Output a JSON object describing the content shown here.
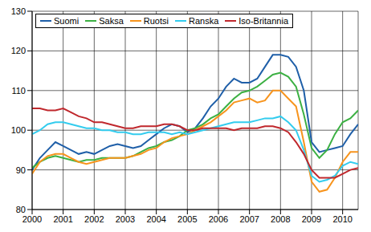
{
  "chart_data": {
    "type": "line",
    "legend": "upper left",
    "grid": true,
    "x": [
      2000,
      2000.25,
      2000.5,
      2000.75,
      2001,
      2001.25,
      2001.5,
      2001.75,
      2002,
      2002.25,
      2002.5,
      2002.75,
      2003,
      2003.25,
      2003.5,
      2003.75,
      2004,
      2004.25,
      2004.5,
      2004.75,
      2005,
      2005.25,
      2005.5,
      2005.75,
      2006,
      2006.25,
      2006.5,
      2006.75,
      2007,
      2007.25,
      2007.5,
      2007.75,
      2008,
      2008.25,
      2008.5,
      2008.75,
      2009,
      2009.25,
      2009.5,
      2009.75,
      2010,
      2010.25,
      2010.5
    ],
    "xlim": [
      2000,
      2010.5
    ],
    "xticks": [
      2000,
      2001,
      2002,
      2003,
      2004,
      2005,
      2006,
      2007,
      2008,
      2009,
      2010
    ],
    "ylim": [
      80,
      130
    ],
    "yticks": [
      80,
      90,
      100,
      110,
      120,
      130
    ],
    "series": [
      {
        "name": "Suomi",
        "color": "#1f5fa8",
        "values": [
          90,
          93,
          95,
          97,
          96,
          95,
          94,
          94.5,
          94,
          95,
          96,
          96.5,
          96,
          95.5,
          96,
          97.5,
          99,
          100.5,
          101.5,
          101,
          99.5,
          100.5,
          103,
          106,
          108,
          111,
          113,
          112,
          112,
          113,
          116,
          119,
          119,
          118.5,
          116,
          110,
          97,
          94.5,
          95,
          95.5,
          96,
          99,
          101.5
        ]
      },
      {
        "name": "Saksa",
        "color": "#3cb043",
        "values": [
          90.5,
          92,
          93,
          93.5,
          93,
          92.5,
          92,
          92.5,
          92.5,
          93,
          93,
          93,
          93,
          93.5,
          94.5,
          95.5,
          96,
          97,
          97.5,
          98.5,
          100,
          100.5,
          101.5,
          103,
          104,
          106,
          108,
          109.5,
          110,
          111,
          112.5,
          114,
          114.5,
          113.5,
          111,
          104,
          95.5,
          93,
          95,
          99,
          102,
          103,
          105
        ]
      },
      {
        "name": "Ruotsi",
        "color": "#f7941d",
        "values": [
          89,
          92,
          93.5,
          94,
          94,
          93,
          92,
          91.5,
          92,
          92.5,
          93,
          93,
          93,
          93.5,
          94,
          95,
          95.5,
          97,
          98,
          98.5,
          99,
          100,
          101,
          102,
          103.5,
          105,
          107,
          107.5,
          108,
          107,
          107.5,
          110,
          110,
          108,
          106,
          97,
          87,
          84.5,
          85,
          88,
          92,
          94.5,
          94.5
        ]
      },
      {
        "name": "Ranska",
        "color": "#33ccee",
        "values": [
          99,
          100,
          101.5,
          102,
          102,
          101.5,
          101,
          100.5,
          100.5,
          100,
          100,
          99.5,
          99.5,
          99,
          99,
          99.5,
          99.5,
          99.5,
          99,
          99.5,
          99,
          99.5,
          100,
          100.5,
          101,
          101.5,
          102,
          102,
          102,
          102.5,
          103,
          103,
          103.5,
          102,
          100,
          95,
          88.5,
          87,
          87.5,
          88.5,
          91,
          92,
          91.5
        ]
      },
      {
        "name": "Iso-Britannia",
        "color": "#c0282d",
        "values": [
          105.5,
          105.5,
          105,
          105,
          105.5,
          104.5,
          103.5,
          103,
          102,
          102,
          101.5,
          101,
          100.5,
          100.5,
          101,
          101,
          101,
          101.5,
          101.5,
          101,
          100,
          100,
          100.5,
          100.5,
          100.5,
          100.5,
          100,
          100.5,
          100.5,
          100.5,
          101,
          101,
          100.5,
          99.5,
          97,
          94,
          90,
          88,
          88,
          88,
          89,
          90,
          90.5
        ]
      }
    ]
  }
}
